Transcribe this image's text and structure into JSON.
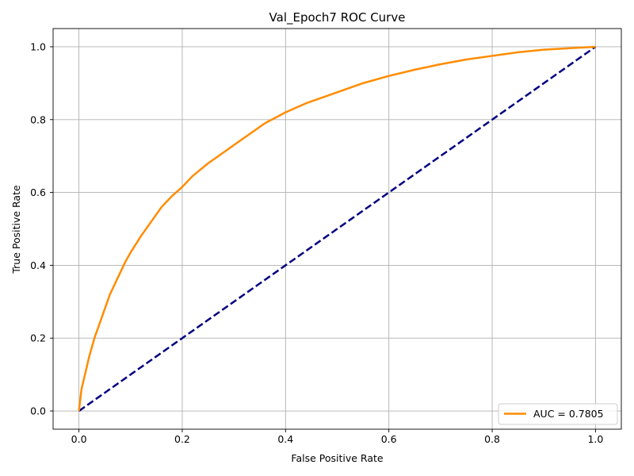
{
  "chart_data": {
    "type": "line",
    "title": "Val_Epoch7 ROC Curve",
    "xlabel": "False Positive Rate",
    "ylabel": "True Positive Rate",
    "xlim": [
      -0.05,
      1.05
    ],
    "ylim": [
      -0.05,
      1.05
    ],
    "xticks": [
      "0.0",
      "0.2",
      "0.4",
      "0.6",
      "0.8",
      "1.0"
    ],
    "yticks": [
      "0.0",
      "0.2",
      "0.4",
      "0.6",
      "0.8",
      "1.0"
    ],
    "grid": true,
    "legend_position": "lower-right",
    "series": [
      {
        "name": "AUC = 0.7805",
        "color": "#ff8c00",
        "style": "solid",
        "x": [
          0.0,
          0.005,
          0.01,
          0.02,
          0.03,
          0.04,
          0.05,
          0.06,
          0.07,
          0.08,
          0.09,
          0.1,
          0.12,
          0.14,
          0.16,
          0.18,
          0.2,
          0.22,
          0.25,
          0.28,
          0.3,
          0.33,
          0.36,
          0.4,
          0.44,
          0.48,
          0.5,
          0.55,
          0.6,
          0.65,
          0.7,
          0.75,
          0.8,
          0.85,
          0.9,
          0.95,
          1.0
        ],
        "y": [
          0.0,
          0.06,
          0.09,
          0.15,
          0.2,
          0.24,
          0.28,
          0.32,
          0.35,
          0.38,
          0.41,
          0.435,
          0.48,
          0.52,
          0.56,
          0.59,
          0.615,
          0.645,
          0.68,
          0.71,
          0.73,
          0.76,
          0.79,
          0.82,
          0.845,
          0.865,
          0.875,
          0.9,
          0.92,
          0.937,
          0.952,
          0.965,
          0.975,
          0.985,
          0.992,
          0.996,
          1.0
        ]
      },
      {
        "name": "",
        "color": "#000080",
        "style": "dashed",
        "x": [
          0.0,
          1.0
        ],
        "y": [
          0.0,
          1.0
        ]
      }
    ]
  }
}
